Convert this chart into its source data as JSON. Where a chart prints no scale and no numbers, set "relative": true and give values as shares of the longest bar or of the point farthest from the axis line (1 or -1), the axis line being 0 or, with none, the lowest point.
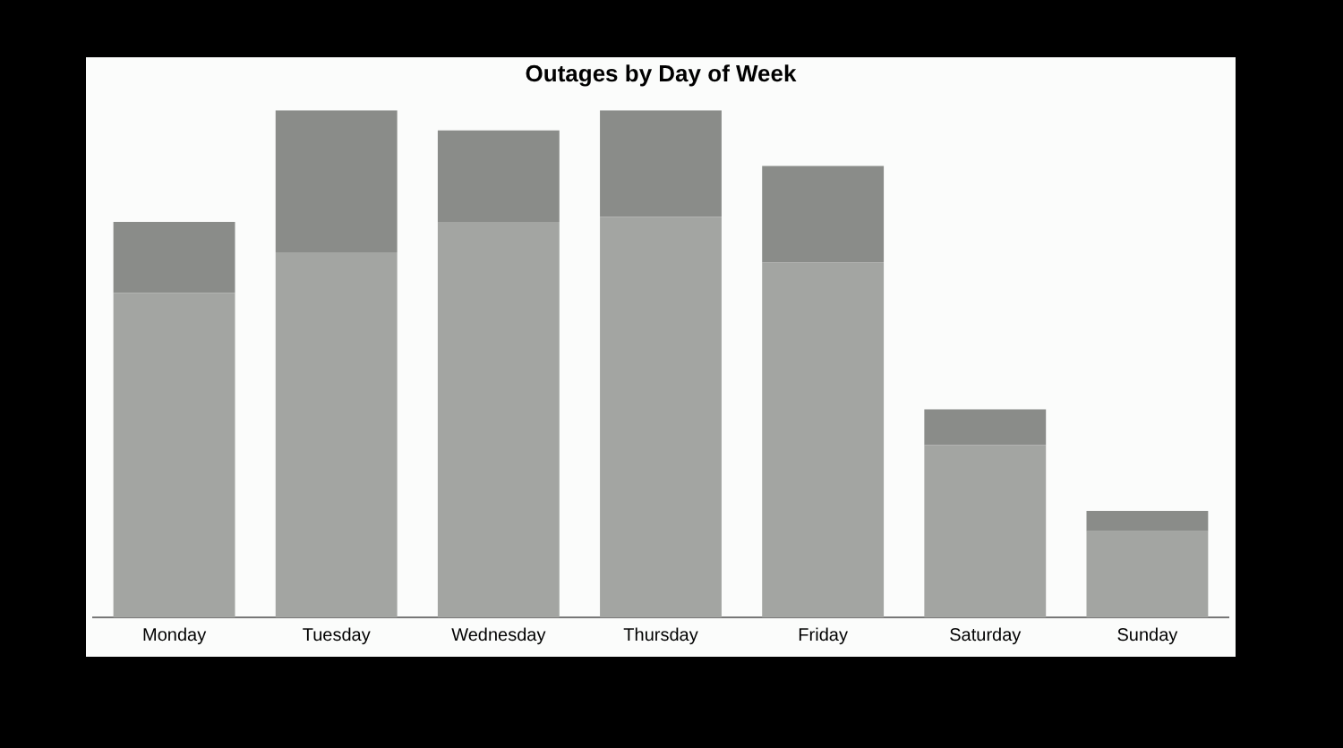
{
  "chart_data": {
    "type": "bar",
    "title": "Outages by Day of Week",
    "categories": [
      "Monday",
      "Tuesday",
      "Wednesday",
      "Thursday",
      "Friday",
      "Saturday",
      "Sunday"
    ],
    "relative": true,
    "stacked": true,
    "series": [
      {
        "color": "#a3a5a2",
        "values": [
          0.64,
          0.72,
          0.78,
          0.79,
          0.7,
          0.34,
          0.17
        ]
      },
      {
        "color": "#8a8c89",
        "values": [
          0.14,
          0.28,
          0.18,
          0.21,
          0.19,
          0.07,
          0.04
        ]
      }
    ]
  }
}
